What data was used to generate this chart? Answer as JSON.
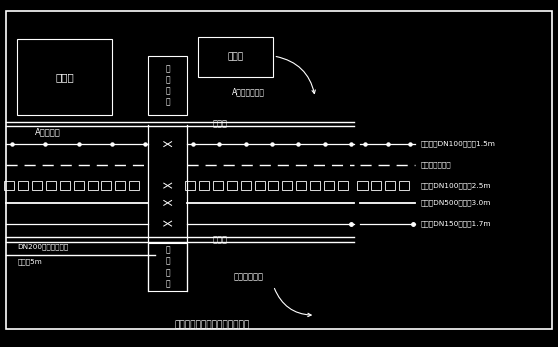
{
  "bg_color": "#000000",
  "fg_color": "#ffffff",
  "title": "顶力管道过道路平面布置示意图",
  "legend_items": [
    {
      "label": "中水水管DN100，埋深1.5m",
      "style": "solid_dots"
    },
    {
      "label": "城市道路中心轴",
      "style": "dashed"
    },
    {
      "label": "污水管DN100，埋深2.5m",
      "style": "dashed_square"
    },
    {
      "label": "给水管DN500，埋深3.0m",
      "style": "solid"
    },
    {
      "label": "给水管DN150，埋深1.7m",
      "style": "solid_dot"
    }
  ]
}
